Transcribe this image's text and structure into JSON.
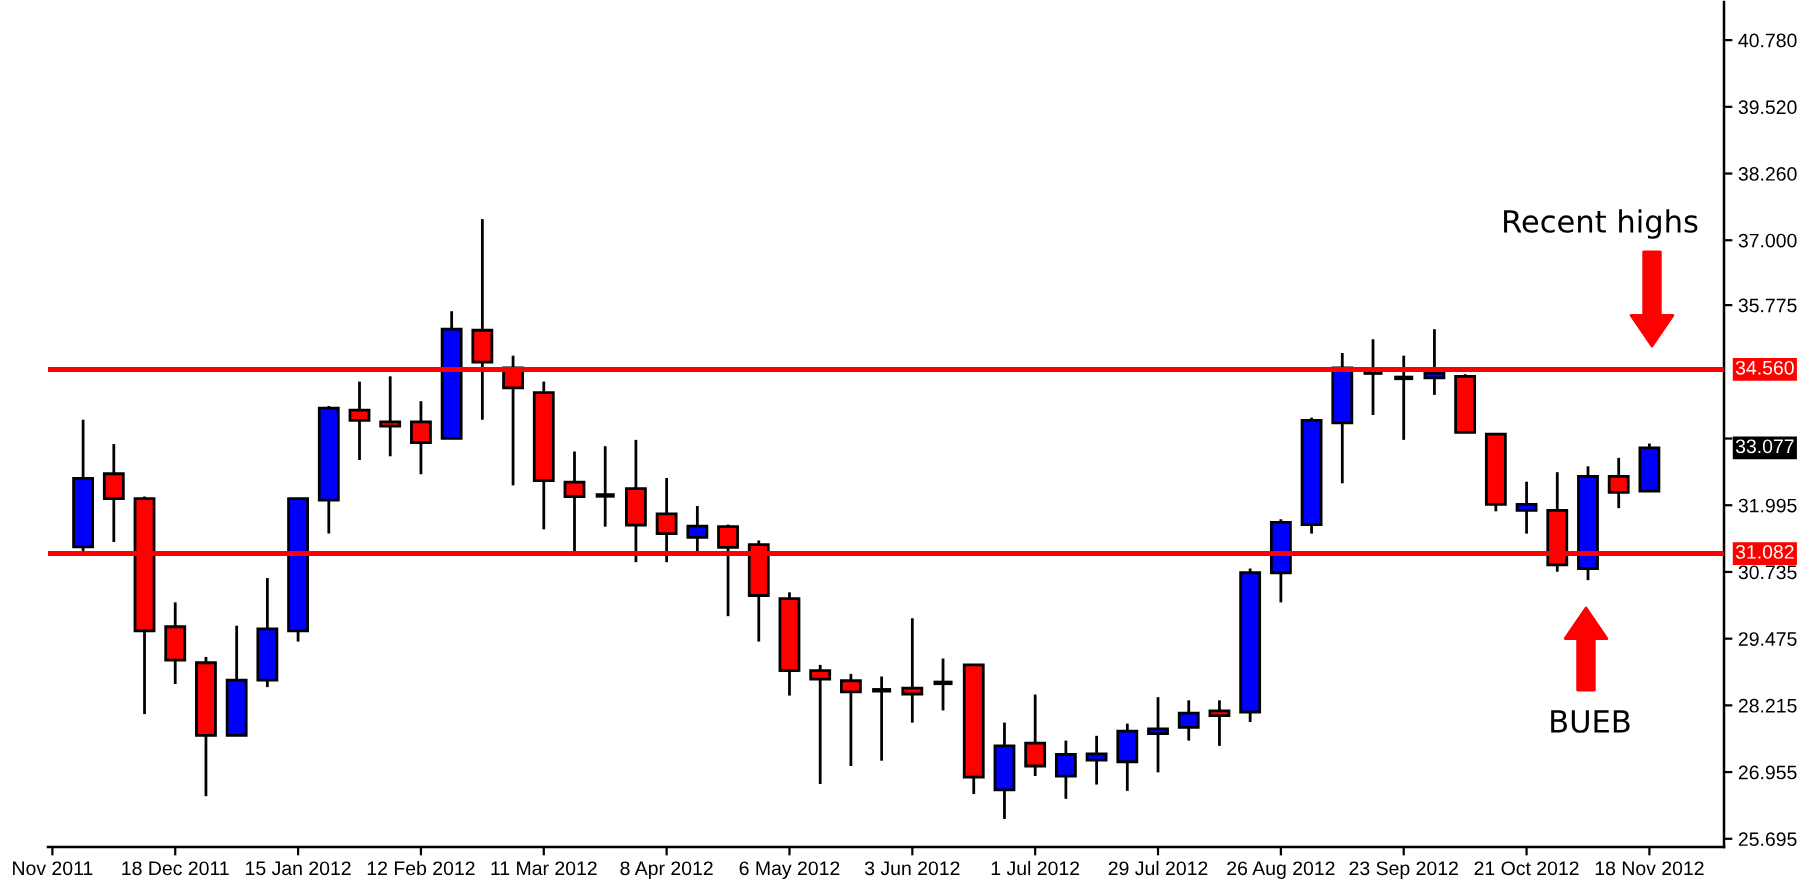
{
  "chart_data": {
    "type": "candlestick",
    "x": [
      "2011-11-27",
      "2011-12-04",
      "2011-12-11",
      "2011-12-18",
      "2011-12-25",
      "2012-01-01",
      "2012-01-08",
      "2012-01-15",
      "2012-01-22",
      "2012-01-29",
      "2012-02-05",
      "2012-02-12",
      "2012-02-19",
      "2012-02-26",
      "2012-03-04",
      "2012-03-11",
      "2012-03-18",
      "2012-03-25",
      "2012-04-01",
      "2012-04-08",
      "2012-04-15",
      "2012-04-22",
      "2012-04-29",
      "2012-05-06",
      "2012-05-13",
      "2012-05-20",
      "2012-05-27",
      "2012-06-03",
      "2012-06-10",
      "2012-06-17",
      "2012-06-24",
      "2012-07-01",
      "2012-07-08",
      "2012-07-15",
      "2012-07-22",
      "2012-07-29",
      "2012-08-05",
      "2012-08-12",
      "2012-08-19",
      "2012-08-26",
      "2012-09-02",
      "2012-09-09",
      "2012-09-16",
      "2012-09-23",
      "2012-09-30",
      "2012-10-07",
      "2012-10-14",
      "2012-10-21",
      "2012-10-28",
      "2012-11-04",
      "2012-11-11",
      "2012-11-18"
    ],
    "ohlc": [
      [
        31.21,
        33.61,
        31.09,
        32.5
      ],
      [
        32.59,
        33.15,
        31.3,
        32.12
      ],
      [
        32.12,
        32.16,
        28.05,
        29.62
      ],
      [
        29.7,
        30.16,
        28.62,
        29.07
      ],
      [
        29.02,
        29.13,
        26.5,
        27.65
      ],
      [
        27.65,
        29.72,
        27.65,
        28.69
      ],
      [
        28.69,
        30.62,
        28.56,
        29.66
      ],
      [
        29.62,
        32.13,
        29.42,
        32.12
      ],
      [
        32.09,
        33.87,
        31.46,
        33.83
      ],
      [
        33.79,
        34.33,
        32.85,
        33.6
      ],
      [
        33.57,
        34.43,
        32.92,
        33.49
      ],
      [
        33.57,
        33.96,
        32.58,
        33.18
      ],
      [
        33.26,
        35.66,
        33.26,
        35.32
      ],
      [
        35.3,
        37.4,
        33.61,
        34.7
      ],
      [
        34.59,
        34.82,
        32.37,
        34.21
      ],
      [
        34.12,
        34.33,
        31.54,
        32.46
      ],
      [
        32.43,
        33.01,
        31.09,
        32.16
      ],
      [
        32.18,
        33.11,
        31.59,
        32.18
      ],
      [
        32.31,
        33.23,
        30.92,
        31.62
      ],
      [
        31.83,
        32.51,
        30.92,
        31.46
      ],
      [
        31.39,
        31.98,
        31.11,
        31.6
      ],
      [
        31.59,
        31.63,
        29.9,
        31.2
      ],
      [
        31.25,
        31.33,
        29.42,
        30.29
      ],
      [
        30.23,
        30.35,
        28.4,
        28.87
      ],
      [
        28.87,
        28.98,
        26.73,
        28.71
      ],
      [
        28.68,
        28.81,
        27.07,
        28.47
      ],
      [
        28.5,
        28.76,
        27.17,
        28.5
      ],
      [
        28.54,
        29.86,
        27.89,
        28.43
      ],
      [
        28.64,
        29.1,
        28.12,
        28.64
      ],
      [
        28.98,
        28.98,
        26.54,
        26.86
      ],
      [
        26.62,
        27.89,
        26.07,
        27.45
      ],
      [
        27.5,
        28.42,
        26.88,
        27.07
      ],
      [
        26.88,
        27.55,
        26.45,
        27.29
      ],
      [
        27.18,
        27.64,
        26.72,
        27.3
      ],
      [
        27.15,
        27.87,
        26.6,
        27.73
      ],
      [
        27.68,
        28.37,
        26.95,
        27.77
      ],
      [
        27.8,
        28.31,
        27.55,
        28.07
      ],
      [
        28.11,
        28.31,
        27.45,
        28.02
      ],
      [
        28.09,
        30.8,
        27.9,
        30.72
      ],
      [
        30.72,
        31.73,
        30.16,
        31.67
      ],
      [
        31.63,
        33.65,
        31.46,
        33.6
      ],
      [
        33.55,
        34.87,
        32.41,
        34.59
      ],
      [
        34.5,
        35.13,
        33.7,
        34.5
      ],
      [
        34.4,
        34.82,
        33.23,
        34.4
      ],
      [
        34.4,
        35.32,
        34.08,
        34.49
      ],
      [
        34.43,
        34.47,
        33.37,
        33.37
      ],
      [
        33.34,
        33.34,
        31.88,
        32.01
      ],
      [
        31.9,
        32.44,
        31.46,
        32.01
      ],
      [
        31.9,
        32.62,
        30.74,
        30.87
      ],
      [
        30.8,
        32.73,
        30.58,
        32.54
      ],
      [
        32.54,
        32.89,
        31.94,
        32.24
      ],
      [
        32.26,
        33.16,
        32.26,
        33.077
      ]
    ],
    "colors": [
      "#0000ff",
      "#ff0000",
      "#ff0000",
      "#ff0000",
      "#ff0000",
      "#0000ff",
      "#0000ff",
      "#0000ff",
      "#0000ff",
      "#ff0000",
      "#ff0000",
      "#ff0000",
      "#0000ff",
      "#ff0000",
      "#ff0000",
      "#ff0000",
      "#ff0000",
      "#000000",
      "#ff0000",
      "#ff0000",
      "#0000ff",
      "#ff0000",
      "#ff0000",
      "#ff0000",
      "#ff0000",
      "#ff0000",
      "#000000",
      "#ff0000",
      "#000000",
      "#ff0000",
      "#0000ff",
      "#ff0000",
      "#0000ff",
      "#0000ff",
      "#0000ff",
      "#0000ff",
      "#0000ff",
      "#ff0000",
      "#0000ff",
      "#0000ff",
      "#0000ff",
      "#0000ff",
      "#000000",
      "#000000",
      "#0000ff",
      "#ff0000",
      "#ff0000",
      "#0000ff",
      "#ff0000",
      "#0000ff",
      "#ff0000",
      "#0000ff"
    ],
    "xlim": [
      "2011-11-19",
      "2012-12-05"
    ],
    "xticks": [
      {
        "value": "2011-11-20",
        "label": "Nov 2011"
      },
      {
        "value": "2011-12-18",
        "label": "18 Dec 2011"
      },
      {
        "value": "2012-01-15",
        "label": "15 Jan 2012"
      },
      {
        "value": "2012-02-12",
        "label": "12 Feb 2012"
      },
      {
        "value": "2012-03-11",
        "label": "11 Mar 2012"
      },
      {
        "value": "2012-04-08",
        "label": "8 Apr 2012"
      },
      {
        "value": "2012-05-06",
        "label": "6 May 2012"
      },
      {
        "value": "2012-06-03",
        "label": "3 Jun 2012"
      },
      {
        "value": "2012-07-01",
        "label": "1 Jul 2012"
      },
      {
        "value": "2012-07-29",
        "label": "29 Jul 2012"
      },
      {
        "value": "2012-08-26",
        "label": "26 Aug 2012"
      },
      {
        "value": "2012-09-23",
        "label": "23 Sep 2012"
      },
      {
        "value": "2012-10-21",
        "label": "21 Oct 2012"
      },
      {
        "value": "2012-11-18",
        "label": "18 Nov 2012"
      }
    ],
    "ylim": [
      25.54,
      41.5
    ],
    "yticks": [
      {
        "value": 25.695,
        "label": "25.695"
      },
      {
        "value": 26.955,
        "label": "26.955"
      },
      {
        "value": 28.215,
        "label": "28.215"
      },
      {
        "value": 29.475,
        "label": "29.475"
      },
      {
        "value": 30.735,
        "label": "30.735"
      },
      {
        "value": 31.995,
        "label": "31.995"
      },
      {
        "value": 33.255,
        "label": null
      },
      {
        "value": 35.775,
        "label": "35.775"
      },
      {
        "value": 37.0,
        "label": "37.000"
      },
      {
        "value": 38.26,
        "label": "38.260"
      },
      {
        "value": 39.52,
        "label": "39.520"
      },
      {
        "value": 40.78,
        "label": "40.780"
      }
    ],
    "ref_lines": [
      {
        "axis": "y",
        "value": 34.56,
        "label": "34.560",
        "color": "#ff0000",
        "line_style": "solid"
      },
      {
        "axis": "y",
        "value": 31.082,
        "label": "31.082",
        "color": "#ff0000",
        "line_style": "solid"
      }
    ],
    "annotations": [
      "Recent highs",
      "BUEB",
      "33.077"
    ]
  }
}
